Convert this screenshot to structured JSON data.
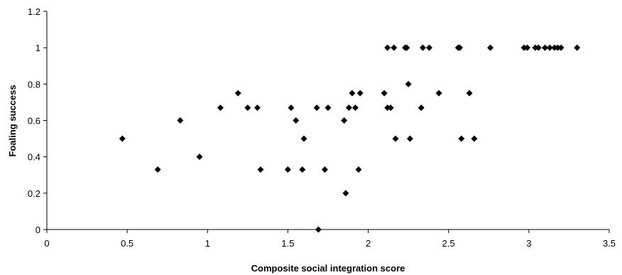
{
  "chart_data": {
    "type": "scatter",
    "title": "",
    "xlabel": "Composite social integration score",
    "ylabel": "Foaling success",
    "xlim": [
      0,
      3.5
    ],
    "ylim": [
      0,
      1.2
    ],
    "x_ticks": [
      "0",
      "0.5",
      "1",
      "1.5",
      "2",
      "2.5",
      "3",
      "3.5"
    ],
    "y_ticks": [
      "0",
      "0.2",
      "0.4",
      "0.6",
      "0.8",
      "1",
      "1.2"
    ],
    "grid": false,
    "legend": "none",
    "marker": "diamond",
    "marker_color": "#000000",
    "series": [
      {
        "points": [
          [
            0.47,
            0.5
          ],
          [
            0.69,
            0.33
          ],
          [
            0.83,
            0.6
          ],
          [
            0.95,
            0.4
          ],
          [
            1.08,
            0.67
          ],
          [
            1.19,
            0.75
          ],
          [
            1.25,
            0.67
          ],
          [
            1.31,
            0.67
          ],
          [
            1.33,
            0.33
          ],
          [
            1.5,
            0.33
          ],
          [
            1.52,
            0.67
          ],
          [
            1.55,
            0.6
          ],
          [
            1.59,
            0.33
          ],
          [
            1.6,
            0.5
          ],
          [
            1.68,
            0.67
          ],
          [
            1.69,
            0.0
          ],
          [
            1.73,
            0.33
          ],
          [
            1.75,
            0.67
          ],
          [
            1.85,
            0.6
          ],
          [
            1.86,
            0.2
          ],
          [
            1.88,
            0.67
          ],
          [
            1.9,
            0.75
          ],
          [
            1.92,
            0.67
          ],
          [
            1.94,
            0.33
          ],
          [
            1.95,
            0.75
          ],
          [
            2.1,
            0.75
          ],
          [
            2.12,
            0.67
          ],
          [
            2.12,
            1.0
          ],
          [
            2.14,
            0.67
          ],
          [
            2.16,
            1.0
          ],
          [
            2.17,
            0.5
          ],
          [
            2.23,
            1.0
          ],
          [
            2.24,
            1.0
          ],
          [
            2.25,
            0.8
          ],
          [
            2.26,
            0.5
          ],
          [
            2.33,
            0.67
          ],
          [
            2.34,
            1.0
          ],
          [
            2.38,
            1.0
          ],
          [
            2.44,
            0.75
          ],
          [
            2.56,
            1.0
          ],
          [
            2.57,
            1.0
          ],
          [
            2.58,
            0.5
          ],
          [
            2.63,
            0.75
          ],
          [
            2.66,
            0.5
          ],
          [
            2.76,
            1.0
          ],
          [
            2.97,
            1.0
          ],
          [
            2.99,
            1.0
          ],
          [
            3.04,
            1.0
          ],
          [
            3.06,
            1.0
          ],
          [
            3.1,
            1.0
          ],
          [
            3.13,
            1.0
          ],
          [
            3.16,
            1.0
          ],
          [
            3.18,
            1.0
          ],
          [
            3.2,
            1.0
          ],
          [
            3.3,
            1.0
          ]
        ]
      }
    ]
  }
}
